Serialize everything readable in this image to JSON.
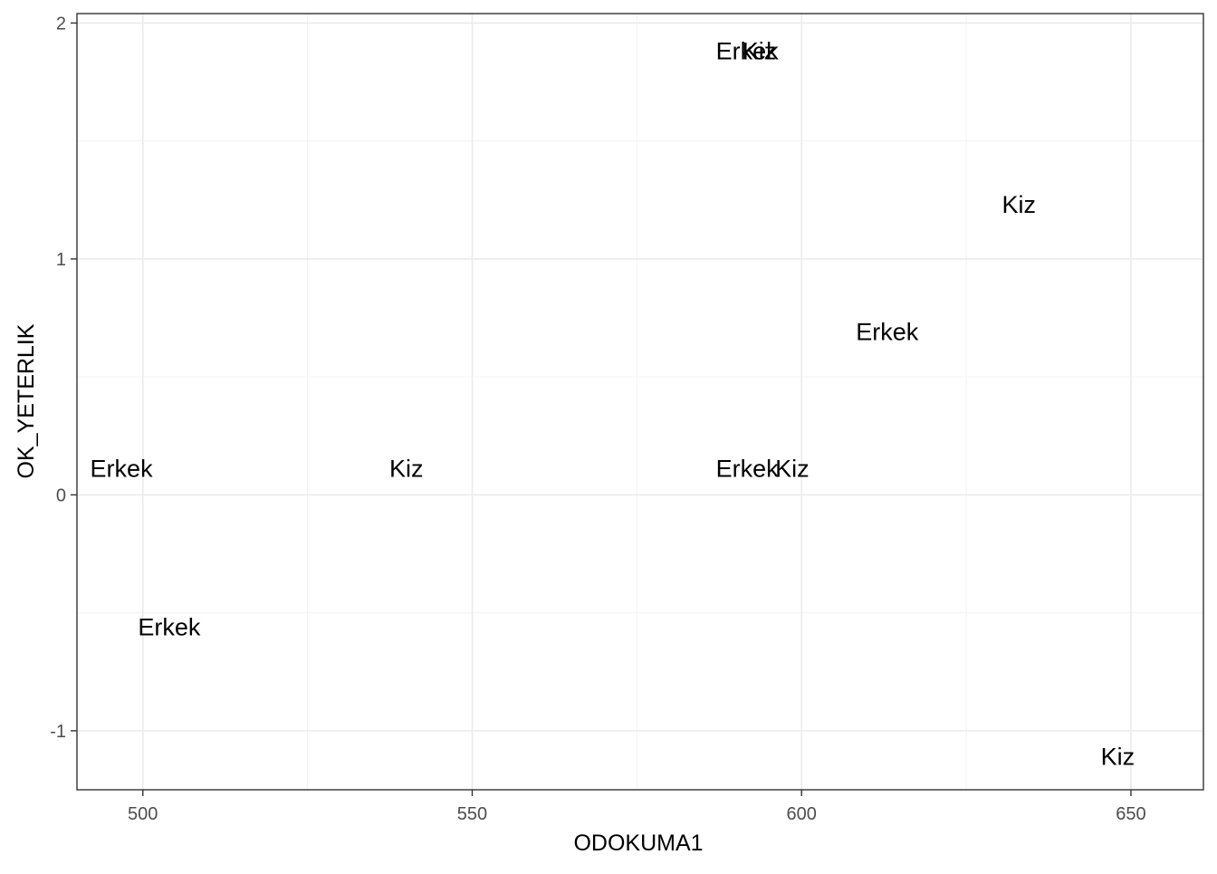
{
  "chart_data": {
    "type": "scatter",
    "title": "",
    "xlabel": "ODOKUMA1",
    "ylabel": "OK_YETERLIK",
    "xlim": [
      490,
      661
    ],
    "ylim": [
      -1.25,
      2.04
    ],
    "x_ticks": [
      500,
      550,
      600,
      650
    ],
    "y_ticks": [
      -1,
      0,
      1,
      2
    ],
    "x_tick_labels": [
      "500",
      "550",
      "600",
      "650"
    ],
    "y_tick_labels": [
      "-1",
      "0",
      "1",
      "2"
    ],
    "grid": true,
    "legend": "none",
    "points": [
      {
        "x": 492,
        "y": 0.11,
        "label": "Erkek"
      },
      {
        "x": 504,
        "y": -0.56,
        "label": "Erkek"
      },
      {
        "x": 540,
        "y": 0.11,
        "label": "Kiz"
      },
      {
        "x": 587,
        "y": 1.88,
        "label": "Erkek"
      },
      {
        "x": 591,
        "y": 1.88,
        "label": "Kiz"
      },
      {
        "x": 587,
        "y": 0.11,
        "label": "Erkek"
      },
      {
        "x": 596,
        "y": 0.11,
        "label": "Kiz"
      },
      {
        "x": 613,
        "y": 0.69,
        "label": "Erkek"
      },
      {
        "x": 633,
        "y": 1.23,
        "label": "Kiz"
      },
      {
        "x": 648,
        "y": -1.11,
        "label": "Kiz"
      }
    ],
    "point_anchor": [
      "start",
      "middle",
      "middle",
      "start",
      "start",
      "start",
      "start",
      "middle",
      "middle",
      "middle"
    ]
  }
}
